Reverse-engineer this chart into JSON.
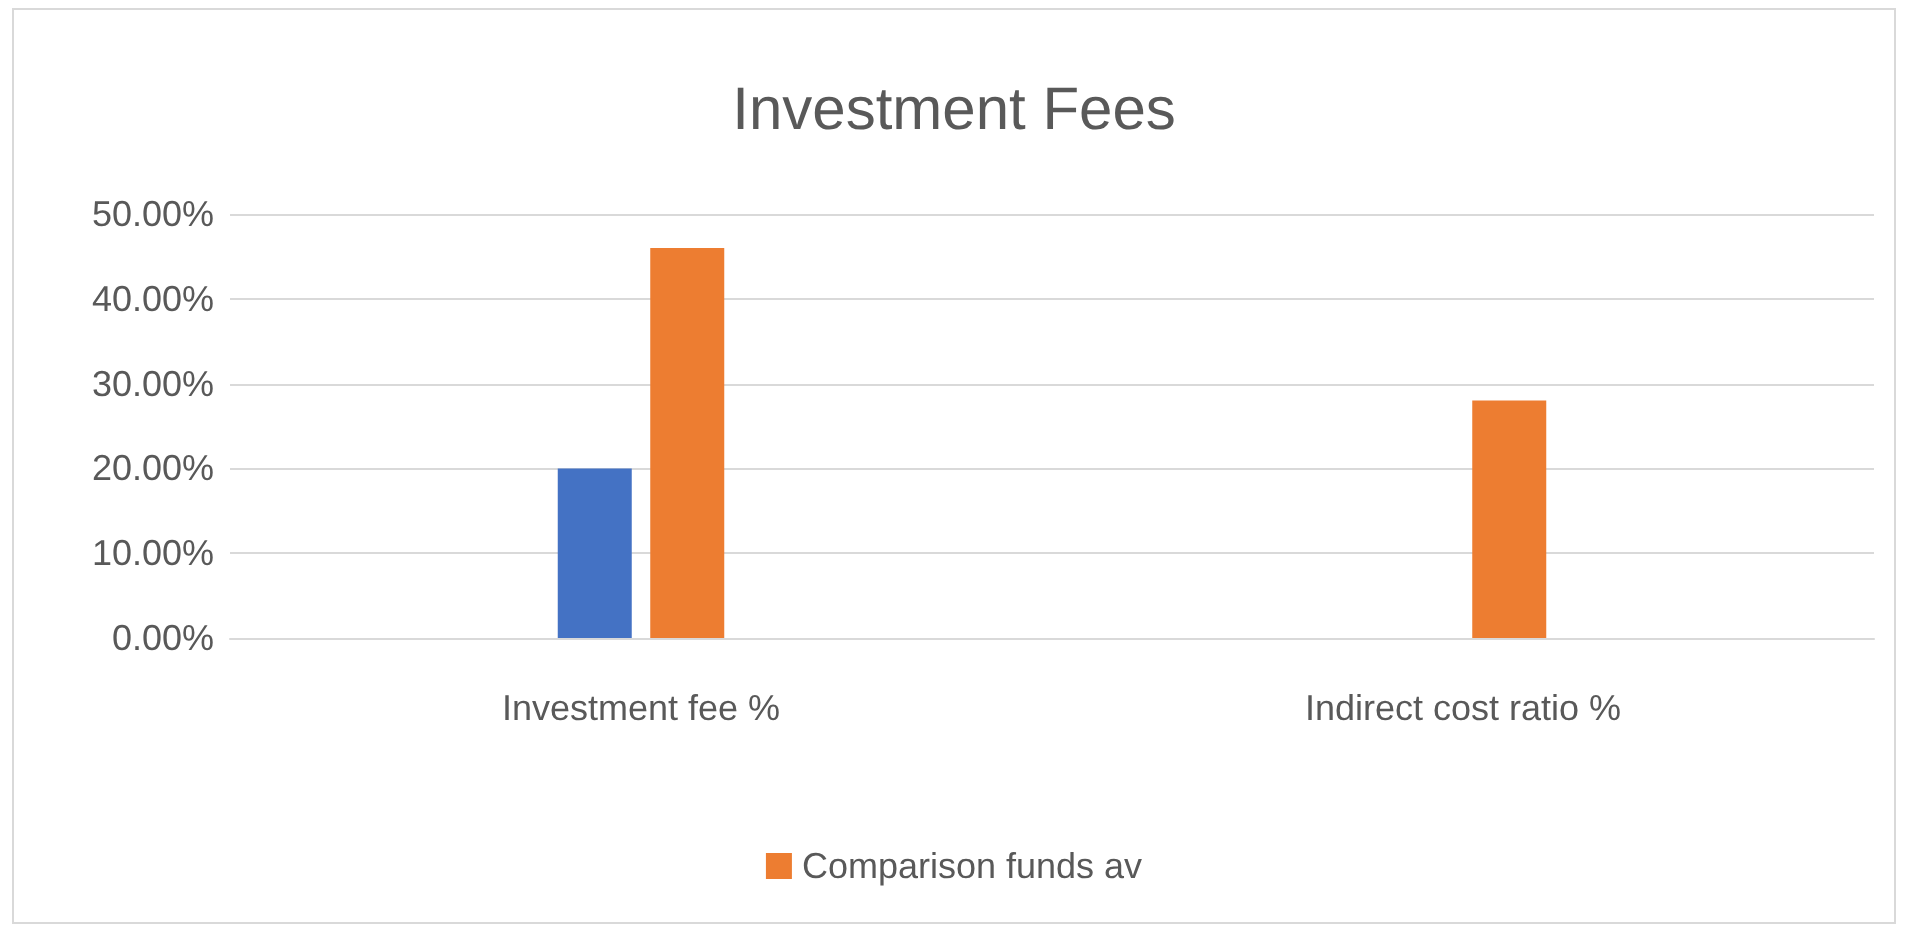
{
  "chart_data": {
    "type": "bar",
    "title": "Investment Fees",
    "categories": [
      "Investment fee %",
      "Indirect cost ratio %"
    ],
    "series": [
      {
        "color": "#4472c4",
        "values": [
          20,
          0
        ]
      },
      {
        "name": "Comparison funds av",
        "color": "#ed7d31",
        "values": [
          46,
          28
        ]
      }
    ],
    "ylim": [
      0,
      50
    ],
    "yticks": [
      {
        "value": 0,
        "label": "0.00%"
      },
      {
        "value": 10,
        "label": "10.00%"
      },
      {
        "value": 20,
        "label": "20.00%"
      },
      {
        "value": 30,
        "label": "30.00%"
      },
      {
        "value": 40,
        "label": "40.00%"
      },
      {
        "value": 50,
        "label": "50.00%"
      }
    ],
    "grid": "y",
    "legend": "bottom"
  }
}
